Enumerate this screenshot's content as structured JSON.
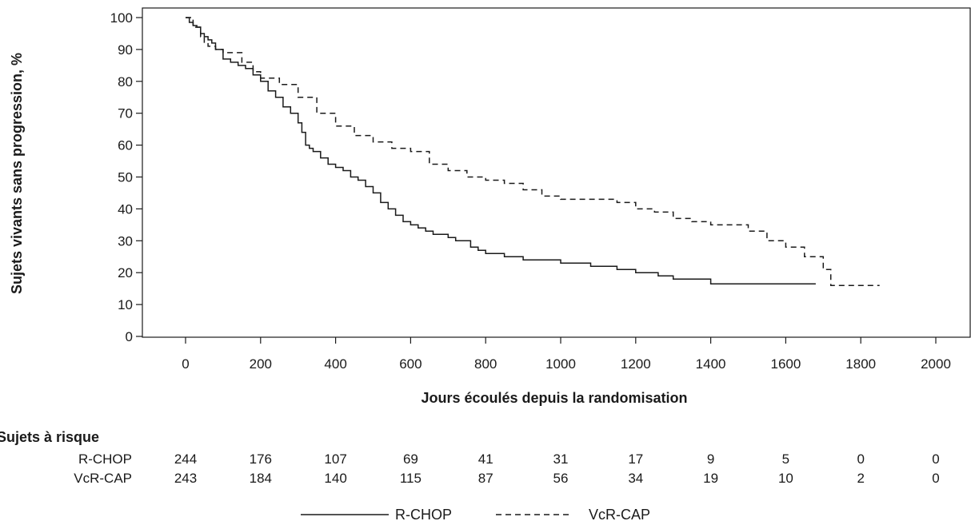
{
  "chart_data": {
    "type": "line",
    "xlabel": "Jours écoulés depuis la randomisation",
    "ylabel": "Sujets vivants sans progression, %",
    "xlim": [
      -100,
      2050
    ],
    "ylim": [
      0,
      100
    ],
    "x_ticks": [
      0,
      200,
      400,
      600,
      800,
      1000,
      1200,
      1400,
      1600,
      1800,
      2000
    ],
    "y_ticks": [
      0,
      10,
      20,
      30,
      40,
      50,
      60,
      70,
      80,
      90,
      100
    ],
    "grid": false,
    "series": [
      {
        "name": "R-CHOP",
        "line_style": "solid",
        "color": "#1a1a1a",
        "x": [
          0,
          10,
          20,
          30,
          40,
          50,
          60,
          70,
          80,
          100,
          120,
          140,
          160,
          180,
          200,
          220,
          240,
          260,
          280,
          300,
          310,
          320,
          330,
          340,
          360,
          380,
          400,
          420,
          440,
          460,
          480,
          500,
          520,
          540,
          560,
          580,
          600,
          620,
          640,
          660,
          700,
          720,
          760,
          780,
          800,
          850,
          880,
          900,
          960,
          1000,
          1050,
          1080,
          1100,
          1150,
          1170,
          1200,
          1260,
          1280,
          1300,
          1390,
          1400,
          1680
        ],
        "y": [
          100,
          98.5,
          97.5,
          97,
          95,
          94,
          93,
          92,
          90,
          87,
          86,
          85,
          84,
          82,
          80,
          77,
          75,
          72,
          70,
          67,
          64,
          60,
          59,
          58,
          56,
          54,
          53,
          52,
          50,
          49,
          47,
          45,
          42,
          40,
          38,
          36,
          35,
          34,
          33,
          32,
          31,
          30,
          28,
          27,
          26,
          25,
          25,
          24,
          24,
          23,
          23,
          22,
          22,
          21,
          21,
          20,
          19,
          19,
          18,
          18,
          16.5,
          16.5
        ]
      },
      {
        "name": "VcR-CAP",
        "line_style": "dashed",
        "color": "#1a1a1a",
        "x": [
          0,
          20,
          40,
          50,
          60,
          80,
          100,
          150,
          180,
          200,
          250,
          300,
          350,
          400,
          450,
          500,
          550,
          600,
          650,
          700,
          750,
          800,
          850,
          900,
          950,
          1000,
          1100,
          1150,
          1200,
          1250,
          1300,
          1350,
          1400,
          1450,
          1500,
          1550,
          1600,
          1650,
          1700,
          1720,
          1850
        ],
        "y": [
          100,
          97,
          94,
          92,
          91,
          90,
          89,
          86,
          83,
          81,
          79,
          75,
          70,
          66,
          63,
          61,
          59,
          58,
          54,
          52,
          50,
          49,
          48,
          46,
          44,
          43,
          43,
          42,
          40,
          39,
          37,
          36,
          35,
          35,
          33,
          30,
          28,
          25,
          21,
          16,
          16
        ]
      }
    ],
    "risk_table": {
      "title": "Sujets à risque",
      "rows": [
        {
          "label": "R-CHOP",
          "values": [
            "244",
            "176",
            "107",
            "69",
            "41",
            "31",
            "17",
            "9",
            "5",
            "0",
            "0"
          ]
        },
        {
          "label": "VcR-CAP",
          "values": [
            "243",
            "184",
            "140",
            "115",
            "87",
            "56",
            "34",
            "19",
            "10",
            "2",
            "0"
          ]
        }
      ]
    },
    "legend": {
      "placement": "bottom-center",
      "items": [
        {
          "label": "R-CHOP",
          "line_style": "solid"
        },
        {
          "label": "VcR-CAP",
          "line_style": "dashed"
        }
      ]
    }
  }
}
